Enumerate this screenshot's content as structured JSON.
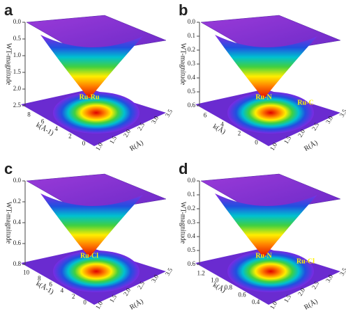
{
  "panels": [
    {
      "letter": "a",
      "z_label": "WT-magnitude",
      "z_ticks": [
        "0.0",
        "0.5",
        "1.0",
        "1.5",
        "2.0",
        "2.5"
      ],
      "k_label": "k(Å-1)",
      "k_ticks": [
        "8",
        "6",
        "4",
        "2",
        "0"
      ],
      "r_label": "R(Å)",
      "r_ticks": [
        "1.0",
        "1.5",
        "2.0",
        "2.5",
        "3.0",
        "3.5"
      ],
      "annotations": [
        "Ru-Ru"
      ]
    },
    {
      "letter": "b",
      "z_label": "WT-magnitude",
      "z_ticks": [
        "0.0",
        "0.1",
        "0.2",
        "0.3",
        "0.4",
        "0.5",
        "0.6"
      ],
      "k_label": "k(Å)",
      "k_ticks": [
        "6",
        "4",
        "2",
        "0"
      ],
      "r_label": "R(Å)",
      "r_ticks": [
        "1.0",
        "1.5",
        "2.0",
        "2.5",
        "3.0",
        "3.5"
      ],
      "annotations": [
        "Ru-N",
        "Ru-C"
      ]
    },
    {
      "letter": "c",
      "z_label": "WT-magnitude",
      "z_ticks": [
        "0.0",
        "0.2",
        "0.4",
        "0.6",
        "0.8"
      ],
      "k_label": "k(Å-1)",
      "k_ticks": [
        "10",
        "8",
        "6",
        "4",
        "2",
        "0"
      ],
      "r_label": "R(Å)",
      "r_ticks": [
        "1.0",
        "1.5",
        "2.0",
        "2.5",
        "3.0",
        "3.5"
      ],
      "annotations": [
        "Ru-Cl"
      ]
    },
    {
      "letter": "d",
      "z_label": "WT-magnitude",
      "z_ticks": [
        "0.0",
        "0.1",
        "0.2",
        "0.3",
        "0.4",
        "0.5",
        "0.6"
      ],
      "k_label": "k(Å)",
      "k_ticks": [
        "1.2",
        "1.0",
        "0.8",
        "0.6",
        "0.4"
      ],
      "r_label": "R(Å)",
      "r_ticks": [
        "1.0",
        "1.5",
        "2.0",
        "2.5",
        "3.0",
        "3.5"
      ],
      "annotations": [
        "Ru-N",
        "Ru-Cl"
      ]
    }
  ]
}
